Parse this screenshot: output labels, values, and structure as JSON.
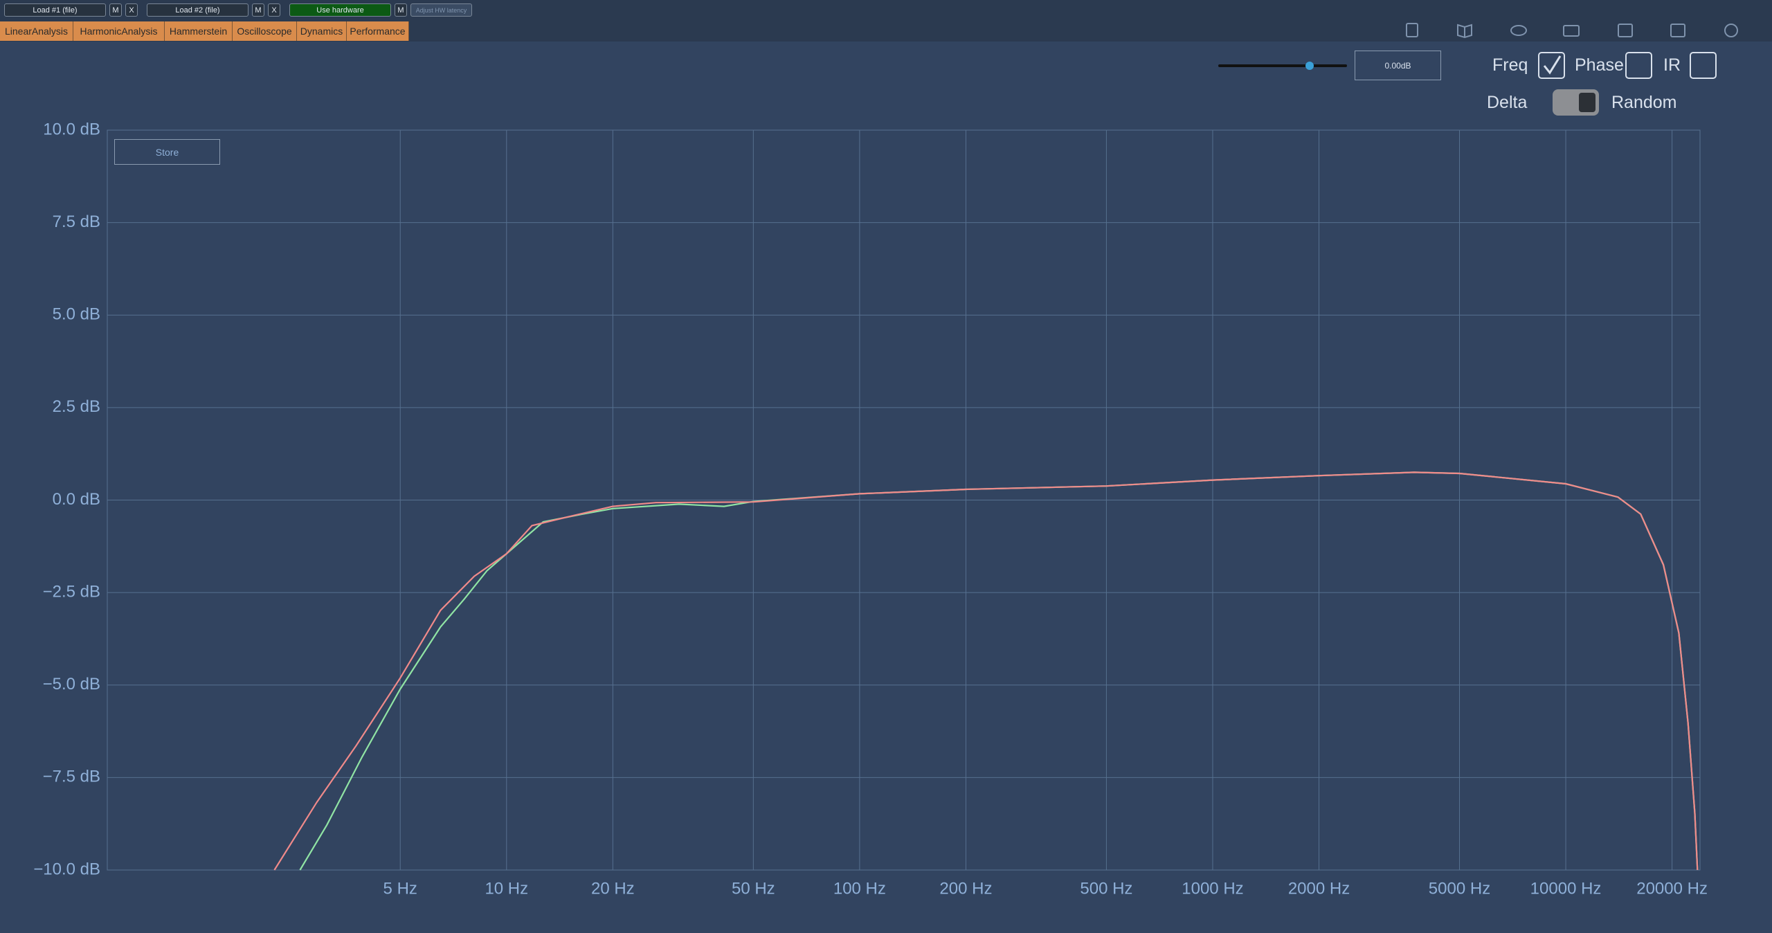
{
  "toolbar": {
    "buttons": [
      "Load #1 (file)",
      "M",
      "X",
      "Load #2 (file)",
      "M",
      "X",
      "Use hardware",
      "M",
      "Adjust HW latency"
    ]
  },
  "tabs": [
    "LinearAnalysis",
    "HarmonicAnalysis",
    "Hammerstein",
    "Oscilloscope",
    "Dynamics",
    "Performance"
  ],
  "controls": {
    "gain": "0.00dB",
    "freq": {
      "label": "Freq",
      "checked": true
    },
    "phase": {
      "label": "Phase",
      "checked": false
    },
    "ir": {
      "label": "IR",
      "checked": false
    },
    "delta": "Delta",
    "random": "Random",
    "store": "Store"
  },
  "chart_data": {
    "type": "line",
    "xscale": "log",
    "xlim": [
      0.74,
      24000
    ],
    "ylim": [
      -10,
      10
    ],
    "grid": true,
    "xticks": [
      {
        "value": 5,
        "label": "5 Hz"
      },
      {
        "value": 10,
        "label": "10 Hz"
      },
      {
        "value": 20,
        "label": "20 Hz"
      },
      {
        "value": 50,
        "label": "50 Hz"
      },
      {
        "value": 100,
        "label": "100 Hz"
      },
      {
        "value": 200,
        "label": "200 Hz"
      },
      {
        "value": 500,
        "label": "500 Hz"
      },
      {
        "value": 1000,
        "label": "1000 Hz"
      },
      {
        "value": 2000,
        "label": "2000 Hz"
      },
      {
        "value": 5000,
        "label": "5000 Hz"
      },
      {
        "value": 10000,
        "label": "10000 Hz"
      },
      {
        "value": 20000,
        "label": "20000 Hz"
      }
    ],
    "yticks": [
      {
        "value": 10,
        "label": "10.0 dB"
      },
      {
        "value": 7.5,
        "label": "7.5 dB"
      },
      {
        "value": 5,
        "label": "5.0 dB"
      },
      {
        "value": 2.5,
        "label": "2.5 dB"
      },
      {
        "value": 0,
        "label": "0.0 dB"
      },
      {
        "value": -2.5,
        "label": "−2.5 dB"
      },
      {
        "value": -5,
        "label": "−5.0 dB"
      },
      {
        "value": -7.5,
        "label": "−7.5 dB"
      },
      {
        "value": -10,
        "label": "−10.0 dB"
      }
    ],
    "series": [
      {
        "color": "#90e4a4",
        "x": [
          2.6,
          3.1,
          3.9,
          5,
          6.5,
          7.6,
          8.8,
          10,
          12.7,
          16.4,
          20,
          30.8,
          41.3,
          50,
          100,
          200,
          500,
          1000,
          2000,
          3720,
          5000,
          10000,
          14060,
          16300,
          18900,
          20900,
          22200,
          23200,
          23600
        ],
        "values": [
          -10,
          -8.78,
          -6.94,
          -5.11,
          -3.43,
          -2.67,
          -1.91,
          -1.45,
          -0.59,
          -0.38,
          -0.23,
          -0.11,
          -0.17,
          -0.04,
          0.17,
          0.29,
          0.38,
          0.54,
          0.66,
          0.75,
          0.72,
          0.44,
          0.08,
          -0.38,
          -1.75,
          -3.59,
          -6.03,
          -8.47,
          -10
        ]
      },
      {
        "color": "#f08a8a",
        "x": [
          2.2,
          2.9,
          3.75,
          5,
          6.5,
          8.1,
          10,
          11.8,
          14.7,
          20,
          26.5,
          50,
          100,
          200,
          500,
          1000,
          2000,
          3720,
          5000,
          10000,
          14060,
          16300,
          18900,
          20900,
          22200,
          23200,
          23600
        ],
        "values": [
          -10,
          -8.17,
          -6.64,
          -4.81,
          -2.98,
          -2.06,
          -1.45,
          -0.69,
          -0.47,
          -0.17,
          -0.07,
          -0.05,
          0.17,
          0.29,
          0.38,
          0.54,
          0.66,
          0.75,
          0.72,
          0.44,
          0.08,
          -0.38,
          -1.75,
          -3.59,
          -6.03,
          -8.47,
          -10
        ]
      }
    ]
  }
}
